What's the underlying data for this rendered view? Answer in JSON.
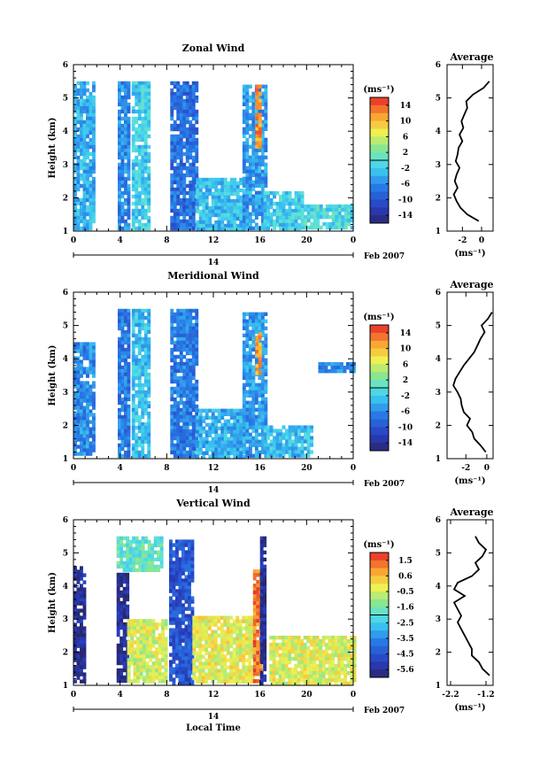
{
  "chart_data": [
    {
      "type": "heatmap",
      "title": "Zonal Wind",
      "ylabel": "Height (km)",
      "xlabel": "",
      "x_ticks": [
        "0",
        "4",
        "8",
        "12",
        "16",
        "20",
        "0"
      ],
      "y_ticks": [
        "1",
        "2",
        "3",
        "4",
        "5",
        "6"
      ],
      "ylim": [
        1,
        6
      ],
      "xlim": [
        0,
        24
      ],
      "day_label": "14",
      "date_label": "Feb 2007",
      "colorbar": {
        "unit": "(ms⁻¹)",
        "ticks": [
          "14",
          "10",
          "6",
          "2",
          "-2",
          "-6",
          "-10",
          "-14"
        ],
        "range": [
          -16,
          16
        ]
      },
      "data_segments": [
        {
          "x": [
            0,
            1.6
          ],
          "y": [
            1.1,
            5.5
          ],
          "value": -4
        },
        {
          "x": [
            3.8,
            4.6
          ],
          "y": [
            1.1,
            5.5
          ],
          "value": -6
        },
        {
          "x": [
            5.0,
            6.5
          ],
          "y": [
            1.1,
            5.5
          ],
          "value": -2
        },
        {
          "x": [
            8.3,
            10.5
          ],
          "y": [
            1.1,
            5.5
          ],
          "value": -8
        },
        {
          "x": [
            10.5,
            14.5
          ],
          "y": [
            1.1,
            2.6
          ],
          "value": -3
        },
        {
          "x": [
            14.5,
            16.5
          ],
          "y": [
            1.1,
            5.4
          ],
          "value": -5
        },
        {
          "x": [
            15.6,
            16.0
          ],
          "y": [
            3.5,
            5.4
          ],
          "value": 12
        },
        {
          "x": [
            16.3,
            19.5
          ],
          "y": [
            1.1,
            2.2
          ],
          "value": -2
        },
        {
          "x": [
            19.5,
            24.0
          ],
          "y": [
            1.1,
            1.8
          ],
          "value": -1
        }
      ],
      "average": {
        "title": "Average",
        "xlabel": "(ms⁻¹)",
        "x_ticks": [
          "-2",
          "0"
        ],
        "xlim": [
          -3.6,
          1.2
        ],
        "height": [
          1.3,
          1.5,
          1.7,
          1.9,
          2.1,
          2.3,
          2.5,
          2.7,
          2.9,
          3.1,
          3.3,
          3.5,
          3.7,
          3.9,
          4.1,
          4.3,
          4.5,
          4.7,
          4.9,
          5.1,
          5.3,
          5.5
        ],
        "value": [
          -0.3,
          -1.5,
          -2.2,
          -2.6,
          -2.9,
          -2.5,
          -2.8,
          -2.6,
          -2.3,
          -2.7,
          -2.5,
          -2.4,
          -2.0,
          -2.3,
          -1.9,
          -2.1,
          -1.8,
          -1.5,
          -1.6,
          -0.9,
          0.2,
          0.8
        ]
      }
    },
    {
      "type": "heatmap",
      "title": "Meridional Wind",
      "ylabel": "Height (km)",
      "xlabel": "",
      "x_ticks": [
        "0",
        "4",
        "8",
        "12",
        "16",
        "20",
        "0"
      ],
      "y_ticks": [
        "1",
        "2",
        "3",
        "4",
        "5",
        "6"
      ],
      "ylim": [
        1,
        6
      ],
      "xlim": [
        0,
        24
      ],
      "day_label": "14",
      "date_label": "Feb 2007",
      "colorbar": {
        "unit": "(ms⁻¹)",
        "ticks": [
          "14",
          "10",
          "6",
          "2",
          "-2",
          "-6",
          "-10",
          "-14"
        ],
        "range": [
          -16,
          16
        ]
      },
      "data_segments": [
        {
          "x": [
            0,
            1.6
          ],
          "y": [
            1.1,
            4.5
          ],
          "value": -6
        },
        {
          "x": [
            3.8,
            4.6
          ],
          "y": [
            1.1,
            5.5
          ],
          "value": -7
        },
        {
          "x": [
            5.0,
            6.5
          ],
          "y": [
            1.1,
            5.5
          ],
          "value": -3
        },
        {
          "x": [
            8.3,
            10.5
          ],
          "y": [
            1.1,
            5.5
          ],
          "value": -7
        },
        {
          "x": [
            10.5,
            14.5
          ],
          "y": [
            1.1,
            2.5
          ],
          "value": -4
        },
        {
          "x": [
            14.5,
            16.5
          ],
          "y": [
            1.1,
            5.4
          ],
          "value": -5
        },
        {
          "x": [
            15.6,
            16.0
          ],
          "y": [
            3.6,
            4.8
          ],
          "value": 11
        },
        {
          "x": [
            16.3,
            20.5
          ],
          "y": [
            1.1,
            2.0
          ],
          "value": -3
        },
        {
          "x": [
            21.0,
            24.0
          ],
          "y": [
            3.6,
            3.9
          ],
          "value": -6
        }
      ],
      "average": {
        "title": "Average",
        "xlabel": "(ms⁻¹)",
        "x_ticks": [
          "-2",
          "0"
        ],
        "xlim": [
          -3.8,
          0.6
        ],
        "height": [
          1.2,
          1.4,
          1.6,
          1.8,
          2.0,
          2.2,
          2.4,
          2.6,
          2.8,
          3.0,
          3.2,
          3.4,
          3.6,
          3.8,
          4.0,
          4.2,
          4.4,
          4.6,
          4.8,
          5.0,
          5.2,
          5.4
        ],
        "value": [
          -0.1,
          -0.6,
          -1.2,
          -1.4,
          -1.9,
          -1.6,
          -2.2,
          -2.4,
          -2.5,
          -2.8,
          -3.2,
          -3.0,
          -2.6,
          -2.2,
          -1.7,
          -1.2,
          -0.9,
          -0.6,
          -0.2,
          -0.5,
          0.1,
          0.5
        ]
      }
    },
    {
      "type": "heatmap",
      "title": "Vertical Wind",
      "ylabel": "Height (km)",
      "xlabel": "Local Time",
      "x_ticks": [
        "0",
        "4",
        "8",
        "12",
        "16",
        "20",
        "0"
      ],
      "y_ticks": [
        "1",
        "2",
        "3",
        "4",
        "5",
        "6"
      ],
      "ylim": [
        1,
        6
      ],
      "xlim": [
        0,
        24
      ],
      "day_label": "14",
      "date_label": "Feb 2007",
      "colorbar": {
        "unit": "(ms⁻¹)",
        "ticks": [
          "1.5",
          "0.6",
          "-0.5",
          "-1.6",
          "-2.5",
          "-3.5",
          "-4.5",
          "-5.6"
        ],
        "range": [
          -6.0,
          2.0
        ]
      },
      "data_segments": [
        {
          "x": [
            0,
            0.9
          ],
          "y": [
            1.1,
            4.6
          ],
          "value": -5.6
        },
        {
          "x": [
            3.7,
            4.6
          ],
          "y": [
            1.1,
            4.4
          ],
          "value": -5.6
        },
        {
          "x": [
            4.6,
            8.0
          ],
          "y": [
            1.1,
            3.0
          ],
          "value": -0.5
        },
        {
          "x": [
            3.7,
            7.5
          ],
          "y": [
            4.5,
            5.5
          ],
          "value": -1.8
        },
        {
          "x": [
            8.2,
            10.2
          ],
          "y": [
            1.1,
            5.4
          ],
          "value": -4.5
        },
        {
          "x": [
            10.2,
            15.4
          ],
          "y": [
            1.1,
            3.1
          ],
          "value": -0.3
        },
        {
          "x": [
            15.4,
            16.0
          ],
          "y": [
            1.1,
            4.5
          ],
          "value": 1.2
        },
        {
          "x": [
            16.0,
            16.4
          ],
          "y": [
            1.1,
            5.5
          ],
          "value": -5.6
        },
        {
          "x": [
            16.8,
            24.0
          ],
          "y": [
            1.1,
            2.5
          ],
          "value": -0.4
        }
      ],
      "average": {
        "title": "Average",
        "xlabel": "(ms⁻¹)",
        "x_ticks": [
          "-2.2",
          "-1.2"
        ],
        "xlim": [
          -2.3,
          -1.0
        ],
        "height": [
          1.3,
          1.5,
          1.7,
          1.9,
          2.1,
          2.3,
          2.5,
          2.7,
          2.9,
          3.1,
          3.3,
          3.5,
          3.7,
          3.9,
          4.1,
          4.3,
          4.5,
          4.7,
          4.9,
          5.1,
          5.3,
          5.5
        ],
        "value": [
          -1.1,
          -1.3,
          -1.4,
          -1.6,
          -1.6,
          -1.7,
          -1.8,
          -1.9,
          -2.0,
          -1.9,
          -2.0,
          -2.1,
          -1.8,
          -2.1,
          -2.0,
          -1.6,
          -1.4,
          -1.5,
          -1.3,
          -1.2,
          -1.4,
          -1.5
        ]
      }
    }
  ]
}
